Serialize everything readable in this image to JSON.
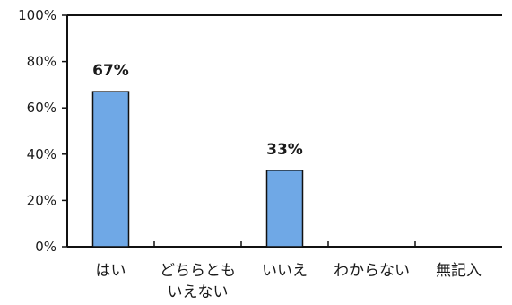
{
  "chart_data": {
    "type": "bar",
    "categories": [
      [
        "はい"
      ],
      [
        "どちらとも",
        "いえない"
      ],
      [
        "いいえ"
      ],
      [
        "わからない"
      ],
      [
        "無記入"
      ]
    ],
    "values": [
      67,
      0,
      33,
      0,
      0
    ],
    "data_labels": [
      "67%",
      "",
      "33%",
      "",
      ""
    ],
    "y_ticks": [
      "0%",
      "20%",
      "40%",
      "60%",
      "80%",
      "100%"
    ],
    "ylim": [
      0,
      100
    ],
    "grid": false,
    "bar_color": "#6fa8e6",
    "bar_edge_color": "#111111",
    "axis_color": "#111111"
  }
}
